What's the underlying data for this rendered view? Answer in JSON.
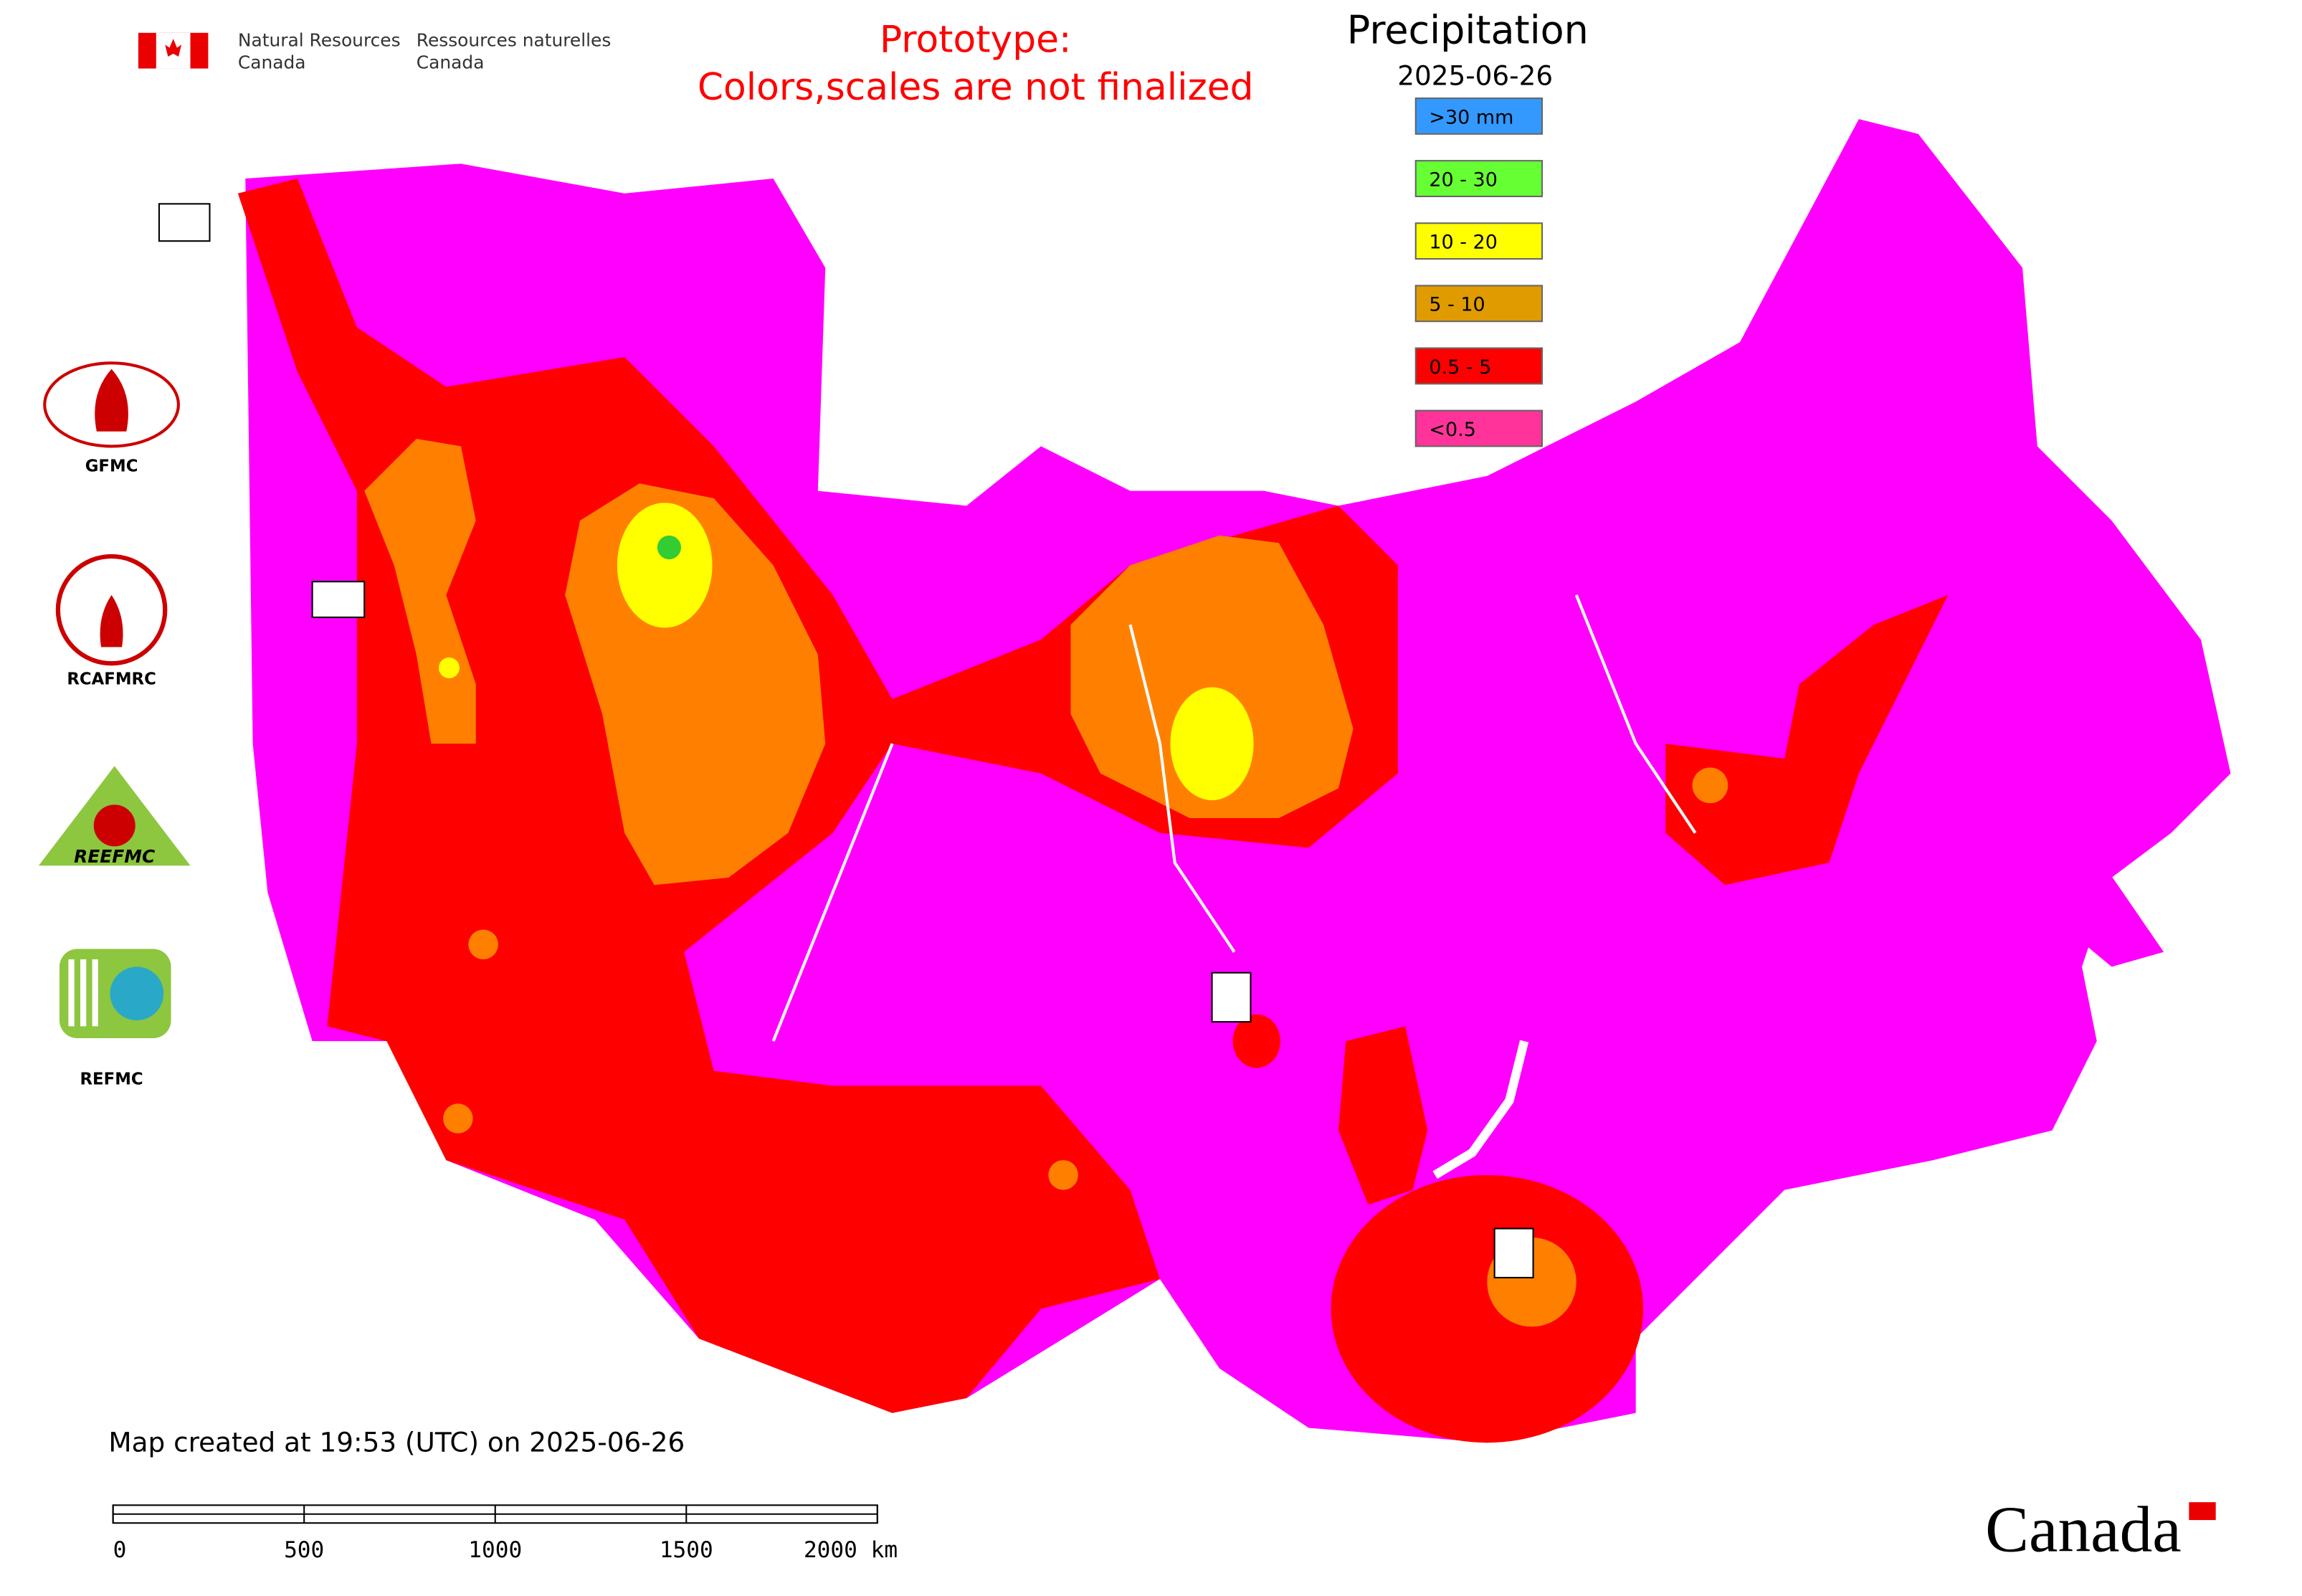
{
  "header": {
    "department_en": [
      "Natural Resources",
      "Canada"
    ],
    "department_fr": [
      "Ressources naturelles",
      "Canada"
    ]
  },
  "notice": {
    "lines": [
      "Prototype:",
      "Colors,scales are not finalized"
    ]
  },
  "legend": {
    "title": "Precipitation",
    "date": "2025-06-26",
    "items": [
      {
        "label": ">30 mm",
        "color": "#3399ff"
      },
      {
        "label": "20 - 30",
        "color": "#66ff33"
      },
      {
        "label": "10 - 20",
        "color": "#ffff00"
      },
      {
        "label": "5 - 10",
        "color": "#e09b00"
      },
      {
        "label": "0.5 - 5",
        "color": "#ff0000"
      },
      {
        "label": "<0.5",
        "color": "#ff3399"
      }
    ]
  },
  "logos": [
    "GFMC",
    "RCAFMRC",
    "REEFMC",
    "REFMC"
  ],
  "footer": {
    "created": "Map created at 19:53 (UTC) on 2025-06-26",
    "scale_labels": [
      "0",
      "500",
      "1000",
      "1500",
      "2000 km"
    ],
    "wordmark": "Canada"
  }
}
